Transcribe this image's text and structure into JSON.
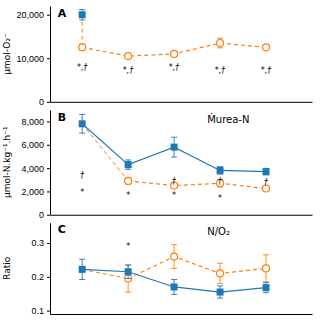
{
  "chart_data": [
    {
      "type": "line",
      "title": "A",
      "ylabel": "μmol-O₂⁻",
      "x": [
        1,
        2,
        3,
        4,
        5,
        6
      ],
      "xlim": [
        0.3,
        6.0
      ],
      "tick_labels": "y",
      "series": [
        {
          "values": [
            20000,
            null,
            null,
            null,
            null,
            null
          ],
          "errors": [
            1200,
            null,
            null,
            null,
            null,
            null
          ],
          "marker": "square",
          "line_style": "none"
        },
        {
          "values": [
            12500,
            10500,
            11000,
            13500,
            12500,
            null
          ],
          "errors": [
            700,
            600,
            500,
            1100,
            500,
            null
          ],
          "marker": "open-circle",
          "line_style": "dashed"
        }
      ],
      "annotations": [
        {
          "text": "*,†",
          "x": 1,
          "y": 8500
        },
        {
          "text": "*,†",
          "x": 2,
          "y": 8000
        },
        {
          "text": "*,†",
          "x": 3,
          "y": 8500
        },
        {
          "text": "*,†",
          "x": 4,
          "y": 8000
        },
        {
          "text": "*,†",
          "x": 5,
          "y": 8000
        }
      ],
      "ylim": [
        0,
        22000
      ],
      "yticks": [
        0,
        {
          "value": 10000,
          "label": "10,000"
        },
        {
          "value": 20000,
          "label": "20,000"
        }
      ]
    },
    {
      "type": "line",
      "title": "B",
      "subtitle": "Ṁurea-N",
      "ylabel": "μmol-N.kg⁻¹.h⁻¹",
      "x": [
        1,
        2,
        3,
        4,
        5,
        6
      ],
      "xlim": [
        0.3,
        6.0
      ],
      "tick_labels": "y",
      "series": [
        {
          "values": [
            7800,
            4300,
            5800,
            3800,
            3700,
            null
          ],
          "errors": [
            800,
            400,
            850,
            320,
            280,
            null
          ],
          "marker": "square",
          "line_style": "solid"
        },
        {
          "values": [
            null,
            2900,
            2500,
            2700,
            2250,
            null
          ],
          "errors": [
            null,
            280,
            220,
            320,
            220,
            null
          ],
          "marker": "open-circle",
          "line_style": "dashed"
        }
      ],
      "annotations": [
        {
          "text": "†",
          "x": 1,
          "y": 3600
        },
        {
          "text": "†",
          "x": 3,
          "y": 3100
        },
        {
          "text": "†",
          "x": 4,
          "y": 3100
        },
        {
          "text": "†",
          "x": 5,
          "y": 3000
        },
        {
          "text": "*",
          "x": 1,
          "y": 2150
        },
        {
          "text": "*",
          "x": 2,
          "y": 1900
        },
        {
          "text": "*",
          "x": 3,
          "y": 1950
        },
        {
          "text": "*",
          "x": 4,
          "y": 1650
        }
      ],
      "ylim": [
        0,
        9000
      ],
      "yticks": [
        0,
        {
          "value": 2000,
          "label": "2,000"
        },
        {
          "value": 4000,
          "label": "4,000"
        },
        {
          "value": 6000,
          "label": "6,000"
        },
        {
          "value": 8000,
          "label": "8,000"
        }
      ]
    },
    {
      "type": "line",
      "title": "C",
      "subtitle": "N/O₂",
      "ylabel": "Ratio",
      "x": [
        1,
        2,
        3,
        4,
        5,
        6
      ],
      "xlim": [
        0.3,
        6.0
      ],
      "tick_labels": "y",
      "series": [
        {
          "values": [
            0.222,
            0.215,
            0.17,
            0.155,
            0.168,
            null
          ],
          "errors": [
            0.03,
            0.02,
            0.022,
            0.018,
            0.015,
            null
          ],
          "marker": "square",
          "line_style": "solid"
        },
        {
          "values": [
            null,
            0.195,
            0.26,
            0.21,
            0.225,
            null
          ],
          "errors": [
            null,
            0.04,
            0.035,
            0.03,
            0.04,
            null
          ],
          "marker": "open-circle",
          "line_style": "dashed"
        }
      ],
      "annotations": [
        {
          "text": "*",
          "x": 2,
          "y": 0.3
        }
      ],
      "ylim": [
        0.09,
        0.36
      ],
      "yticks": [
        0.1,
        0.2,
        0.3
      ]
    }
  ]
}
